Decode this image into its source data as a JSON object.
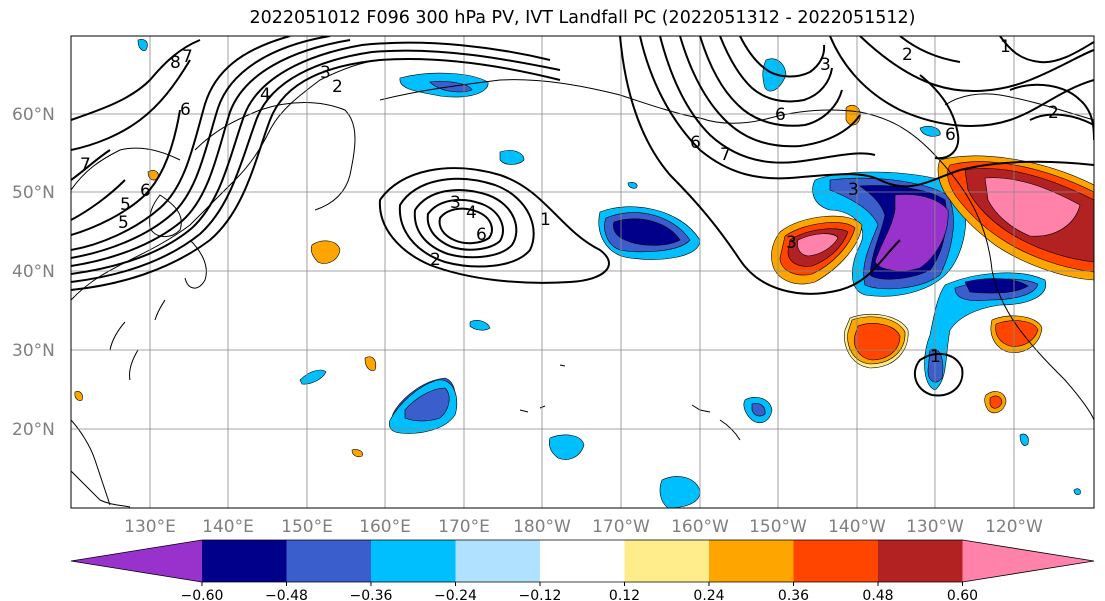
{
  "title": "2022051012 F096 300 hPa PV, IVT Landfall PC (2022051312 - 2022051512)",
  "lat_labels": [
    "60°N",
    "50°N",
    "40°N",
    "30°N",
    "20°N"
  ],
  "lon_labels": [
    "130°E",
    "140°E",
    "150°E",
    "160°E",
    "170°E",
    "180°W",
    "170°W",
    "160°W",
    "150°W",
    "140°W",
    "130°W",
    "120°W"
  ],
  "colorbar": {
    "ticks": [
      "−0.60",
      "−0.48",
      "−0.36",
      "−0.24",
      "−0.12",
      "0.12",
      "0.24",
      "0.36",
      "0.48",
      "0.60"
    ],
    "colors": [
      "#9932cc",
      "#00008b",
      "#3a5fcd",
      "#00bfff",
      "#b0e2ff",
      "#ffffff",
      "#ffec8b",
      "#ffa500",
      "#ff4500",
      "#b22222",
      "#ff82ab"
    ]
  },
  "contour_labels": [
    "8",
    "7",
    "6",
    "5",
    "4",
    "3",
    "2",
    "1",
    "3",
    "4",
    "6",
    "7",
    "2",
    "6",
    "7",
    "3",
    "3",
    "1",
    "3",
    "6",
    "6",
    "2",
    "5",
    "6",
    "1",
    "2"
  ]
}
